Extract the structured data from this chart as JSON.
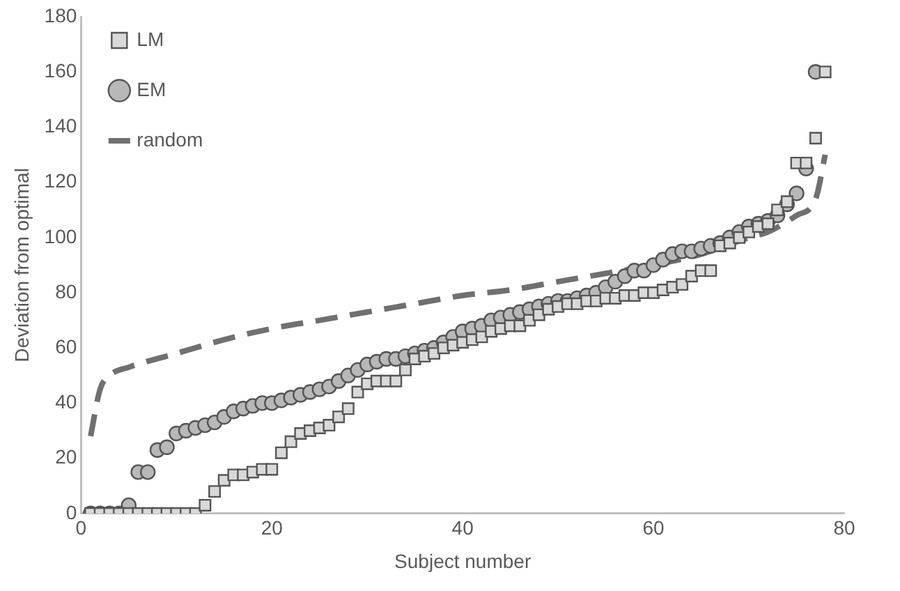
{
  "chart_data": {
    "type": "scatter",
    "xlabel": "Subject number",
    "ylabel": "Deviation from optimal",
    "xlim": [
      0,
      80
    ],
    "xticks": [
      0,
      20,
      40,
      60,
      80
    ],
    "ylim": [
      0,
      180
    ],
    "yticks": [
      0,
      20,
      40,
      60,
      80,
      100,
      120,
      140,
      160,
      180
    ],
    "grid": false,
    "legend": "top left",
    "series": [
      {
        "name": "LM",
        "marker": "square",
        "color": "#d9d9d9",
        "x": [
          1,
          2,
          3,
          4,
          5,
          6,
          7,
          8,
          9,
          10,
          11,
          12,
          13,
          14,
          15,
          16,
          17,
          18,
          19,
          20,
          21,
          22,
          23,
          24,
          25,
          26,
          27,
          28,
          29,
          30,
          31,
          32,
          33,
          34,
          35,
          36,
          37,
          38,
          39,
          40,
          41,
          42,
          43,
          44,
          45,
          46,
          47,
          48,
          49,
          50,
          51,
          52,
          53,
          54,
          55,
          56,
          57,
          58,
          59,
          60,
          61,
          62,
          63,
          64,
          65,
          66,
          67,
          68,
          69,
          70,
          71,
          72,
          73,
          74,
          75,
          76,
          77,
          78
        ],
        "values": [
          0,
          0,
          0,
          0,
          0,
          0,
          0,
          0,
          0,
          0,
          0,
          0,
          3,
          8,
          12,
          14,
          14,
          15,
          16,
          16,
          22,
          26,
          29,
          30,
          31,
          32,
          35,
          38,
          44,
          47,
          48,
          48,
          48,
          52,
          56,
          57,
          58,
          60,
          61,
          62,
          63,
          64,
          66,
          67,
          68,
          68,
          70,
          72,
          74,
          75,
          76,
          76,
          77,
          77,
          78,
          78,
          79,
          79,
          80,
          80,
          81,
          82,
          83,
          86,
          88,
          88,
          97,
          98,
          100,
          102,
          104,
          105,
          110,
          113,
          127,
          127,
          136,
          160
        ]
      },
      {
        "name": "EM",
        "marker": "circle",
        "color": "#b8b8b8",
        "x": [
          1,
          2,
          3,
          4,
          5,
          6,
          7,
          8,
          9,
          10,
          11,
          12,
          13,
          14,
          15,
          16,
          17,
          18,
          19,
          20,
          21,
          22,
          23,
          24,
          25,
          26,
          27,
          28,
          29,
          30,
          31,
          32,
          33,
          34,
          35,
          36,
          37,
          38,
          39,
          40,
          41,
          42,
          43,
          44,
          45,
          46,
          47,
          48,
          49,
          50,
          51,
          52,
          53,
          54,
          55,
          56,
          57,
          58,
          59,
          60,
          61,
          62,
          63,
          64,
          65,
          66,
          67,
          68,
          69,
          70,
          71,
          72,
          73,
          74,
          75,
          76,
          77
        ],
        "values": [
          0,
          0,
          0,
          0,
          3,
          15,
          15,
          23,
          24,
          29,
          30,
          31,
          32,
          33,
          35,
          37,
          38,
          39,
          40,
          40,
          41,
          42,
          43,
          44,
          45,
          46,
          48,
          50,
          52,
          54,
          55,
          56,
          56,
          57,
          58,
          59,
          60,
          62,
          64,
          66,
          67,
          68,
          70,
          71,
          72,
          73,
          74,
          75,
          76,
          77,
          77,
          78,
          79,
          80,
          82,
          84,
          86,
          88,
          88,
          90,
          92,
          94,
          95,
          95,
          96,
          97,
          98,
          100,
          102,
          104,
          105,
          106,
          108,
          112,
          116,
          125,
          160
        ]
      },
      {
        "name": "random",
        "type": "line",
        "marker": "none",
        "line_style": "dashed",
        "color": "#707070",
        "x": [
          1,
          2,
          3,
          5,
          10,
          15,
          20,
          25,
          30,
          35,
          40,
          45,
          50,
          55,
          60,
          65,
          70,
          72,
          75,
          77,
          78
        ],
        "values": [
          28,
          45,
          50,
          53,
          58,
          63,
          67,
          70,
          73,
          76,
          79,
          81,
          84,
          87,
          90,
          94,
          100,
          102,
          108,
          114,
          130
        ]
      }
    ]
  }
}
